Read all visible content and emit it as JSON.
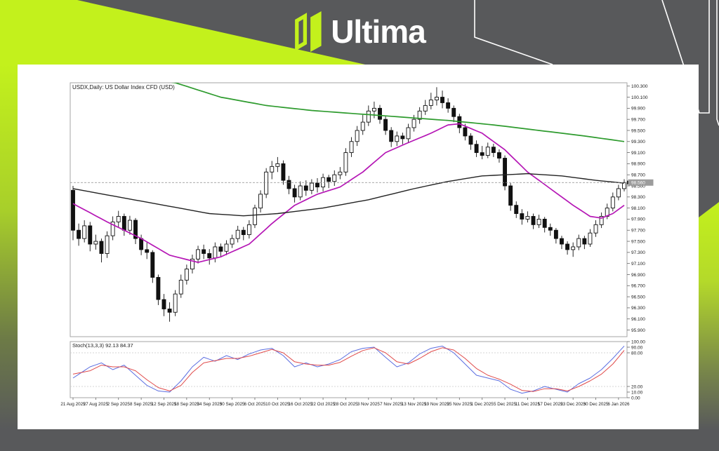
{
  "branding": {
    "logo_text": "Ultima",
    "accent_color": "#c3f11c",
    "background_color": "#58595b"
  },
  "chart_data": {
    "type": "candlestick",
    "title": "USDX,Daily: US Dollar Index CFD (USD)",
    "price_ylim": [
      95.78,
      100.36
    ],
    "price_axis_labels": [
      "100.300",
      "100.100",
      "99.900",
      "99.700",
      "99.500",
      "99.300",
      "99.100",
      "98.900",
      "98.700",
      "98.500",
      "98.300",
      "98.100",
      "97.900",
      "97.700",
      "97.500",
      "97.300",
      "97.100",
      "96.900",
      "96.700",
      "96.500",
      "96.300",
      "96.100",
      "95.900"
    ],
    "current_price": 98.56,
    "current_price_label": "98.560",
    "x_tick_labels": [
      "21 Aug 2025",
      "27 Aug 2025",
      "2 Sep 2025",
      "8 Sep 2025",
      "12 Sep 2025",
      "18 Sep 2025",
      "24 Sep 2025",
      "30 Sep 2025",
      "6 Oct 2025",
      "10 Oct 2025",
      "16 Oct 2025",
      "22 Oct 2025",
      "28 Oct 2025",
      "3 Nov 2025",
      "7 Nov 2025",
      "13 Nov 2025",
      "19 Nov 2025",
      "25 Nov 2025",
      "1 Dec 2025",
      "5 Dec 2025",
      "11 Dec 2025",
      "17 Dec 2025",
      "23 Dec 2025",
      "30 Dec 2025",
      "6 Jan 2026"
    ],
    "x_label_every": 4,
    "candles": [
      [
        98.42,
        98.5,
        97.52,
        97.7
      ],
      [
        97.7,
        97.82,
        97.42,
        97.55
      ],
      [
        97.55,
        97.88,
        97.48,
        97.78
      ],
      [
        97.78,
        97.85,
        97.32,
        97.45
      ],
      [
        97.45,
        97.62,
        97.35,
        97.5
      ],
      [
        97.5,
        97.55,
        97.12,
        97.28
      ],
      [
        97.28,
        97.68,
        97.2,
        97.6
      ],
      [
        97.6,
        97.95,
        97.52,
        97.85
      ],
      [
        97.85,
        98.05,
        97.75,
        97.95
      ],
      [
        97.95,
        98.0,
        97.6,
        97.7
      ],
      [
        97.7,
        97.96,
        97.62,
        97.88
      ],
      [
        97.88,
        97.92,
        97.45,
        97.55
      ],
      [
        97.55,
        97.62,
        97.25,
        97.35
      ],
      [
        97.35,
        97.48,
        97.18,
        97.3
      ],
      [
        97.3,
        97.34,
        96.75,
        96.85
      ],
      [
        96.85,
        96.9,
        96.35,
        96.45
      ],
      [
        96.45,
        96.55,
        96.15,
        96.28
      ],
      [
        96.28,
        96.4,
        96.05,
        96.22
      ],
      [
        96.22,
        96.62,
        96.15,
        96.55
      ],
      [
        96.55,
        96.9,
        96.48,
        96.8
      ],
      [
        96.8,
        97.08,
        96.72,
        97.0
      ],
      [
        97.0,
        97.26,
        96.92,
        97.18
      ],
      [
        97.18,
        97.42,
        97.1,
        97.35
      ],
      [
        97.35,
        97.44,
        97.18,
        97.28
      ],
      [
        97.28,
        97.36,
        97.08,
        97.2
      ],
      [
        97.2,
        97.48,
        97.12,
        97.4
      ],
      [
        97.4,
        97.46,
        97.22,
        97.32
      ],
      [
        97.32,
        97.52,
        97.25,
        97.45
      ],
      [
        97.45,
        97.62,
        97.38,
        97.55
      ],
      [
        97.55,
        97.78,
        97.48,
        97.7
      ],
      [
        97.7,
        97.76,
        97.52,
        97.62
      ],
      [
        97.62,
        97.88,
        97.55,
        97.8
      ],
      [
        97.8,
        98.16,
        97.74,
        98.1
      ],
      [
        98.1,
        98.42,
        98.02,
        98.35
      ],
      [
        98.35,
        98.82,
        98.28,
        98.75
      ],
      [
        98.75,
        98.95,
        98.62,
        98.85
      ],
      [
        98.85,
        99.02,
        98.75,
        98.9
      ],
      [
        98.9,
        98.96,
        98.52,
        98.6
      ],
      [
        98.6,
        98.68,
        98.35,
        98.45
      ],
      [
        98.45,
        98.52,
        98.2,
        98.3
      ],
      [
        98.3,
        98.58,
        98.24,
        98.5
      ],
      [
        98.5,
        98.6,
        98.32,
        98.42
      ],
      [
        98.42,
        98.62,
        98.35,
        98.55
      ],
      [
        98.55,
        98.64,
        98.38,
        98.48
      ],
      [
        98.48,
        98.72,
        98.4,
        98.65
      ],
      [
        98.65,
        98.7,
        98.46,
        98.58
      ],
      [
        98.58,
        98.78,
        98.5,
        98.7
      ],
      [
        98.7,
        98.84,
        98.62,
        98.75
      ],
      [
        98.75,
        99.18,
        98.68,
        99.1
      ],
      [
        99.1,
        99.38,
        99.02,
        99.3
      ],
      [
        99.3,
        99.58,
        99.22,
        99.5
      ],
      [
        99.5,
        99.78,
        99.42,
        99.65
      ],
      [
        99.65,
        99.95,
        99.58,
        99.85
      ],
      [
        99.85,
        100.02,
        99.72,
        99.9
      ],
      [
        99.9,
        99.96,
        99.62,
        99.7
      ],
      [
        99.7,
        99.76,
        99.42,
        99.5
      ],
      [
        99.5,
        99.56,
        99.2,
        99.3
      ],
      [
        99.3,
        99.48,
        99.22,
        99.4
      ],
      [
        99.4,
        99.46,
        99.25,
        99.35
      ],
      [
        99.35,
        99.62,
        99.28,
        99.55
      ],
      [
        99.55,
        99.78,
        99.48,
        99.7
      ],
      [
        99.7,
        99.92,
        99.62,
        99.85
      ],
      [
        99.85,
        100.05,
        99.78,
        99.95
      ],
      [
        99.95,
        100.18,
        99.88,
        100.05
      ],
      [
        100.05,
        100.28,
        99.95,
        100.1
      ],
      [
        100.1,
        100.22,
        99.9,
        100.0
      ],
      [
        100.0,
        100.08,
        99.82,
        99.9
      ],
      [
        99.9,
        99.95,
        99.65,
        99.75
      ],
      [
        99.75,
        99.8,
        99.45,
        99.55
      ],
      [
        99.55,
        99.62,
        99.32,
        99.4
      ],
      [
        99.4,
        99.45,
        99.15,
        99.25
      ],
      [
        99.25,
        99.32,
        99.02,
        99.1
      ],
      [
        99.1,
        99.22,
        98.98,
        99.05
      ],
      [
        99.05,
        99.28,
        99.0,
        99.2
      ],
      [
        99.2,
        99.26,
        99.02,
        99.1
      ],
      [
        99.1,
        99.16,
        98.92,
        99.0
      ],
      [
        99.0,
        99.05,
        98.42,
        98.5
      ],
      [
        98.5,
        98.55,
        98.05,
        98.15
      ],
      [
        98.15,
        98.22,
        97.92,
        98.0
      ],
      [
        98.0,
        98.08,
        97.8,
        97.9
      ],
      [
        97.9,
        98.04,
        97.84,
        97.95
      ],
      [
        97.95,
        98.0,
        97.72,
        97.8
      ],
      [
        97.8,
        97.98,
        97.74,
        97.9
      ],
      [
        97.9,
        97.94,
        97.66,
        97.75
      ],
      [
        97.75,
        97.82,
        97.6,
        97.7
      ],
      [
        97.7,
        97.74,
        97.46,
        97.55
      ],
      [
        97.55,
        97.6,
        97.36,
        97.45
      ],
      [
        97.45,
        97.5,
        97.26,
        97.35
      ],
      [
        97.35,
        97.48,
        97.22,
        97.4
      ],
      [
        97.4,
        97.62,
        97.34,
        97.55
      ],
      [
        97.55,
        97.6,
        97.36,
        97.45
      ],
      [
        97.45,
        97.72,
        97.4,
        97.65
      ],
      [
        97.65,
        97.88,
        97.58,
        97.8
      ],
      [
        97.8,
        98.02,
        97.74,
        97.95
      ],
      [
        97.95,
        98.18,
        97.9,
        98.1
      ],
      [
        98.1,
        98.38,
        98.04,
        98.3
      ],
      [
        98.3,
        98.52,
        98.24,
        98.45
      ],
      [
        98.45,
        98.62,
        98.4,
        98.56
      ]
    ],
    "overlays": [
      {
        "name": "ma-long-green",
        "color": "#2e9b2e",
        "width": 1.7,
        "anchors": [
          [
            0,
            100.62
          ],
          [
            18,
            100.36
          ],
          [
            26,
            100.1
          ],
          [
            34,
            99.95
          ],
          [
            42,
            99.86
          ],
          [
            50,
            99.8
          ],
          [
            58,
            99.74
          ],
          [
            66,
            99.68
          ],
          [
            74,
            99.6
          ],
          [
            82,
            99.5
          ],
          [
            90,
            99.4
          ],
          [
            97,
            99.3
          ]
        ]
      },
      {
        "name": "ma-medium-magenta",
        "color": "#b516b5",
        "width": 1.7,
        "anchors": [
          [
            0,
            98.18
          ],
          [
            6,
            97.85
          ],
          [
            12,
            97.55
          ],
          [
            17,
            97.25
          ],
          [
            22,
            97.12
          ],
          [
            26,
            97.22
          ],
          [
            31,
            97.45
          ],
          [
            35,
            97.82
          ],
          [
            39,
            98.15
          ],
          [
            43,
            98.35
          ],
          [
            47,
            98.48
          ],
          [
            51,
            98.75
          ],
          [
            55,
            99.1
          ],
          [
            59,
            99.28
          ],
          [
            63,
            99.45
          ],
          [
            66,
            99.6
          ],
          [
            68,
            99.62
          ],
          [
            72,
            99.45
          ],
          [
            76,
            99.15
          ],
          [
            80,
            98.75
          ],
          [
            84,
            98.45
          ],
          [
            88,
            98.15
          ],
          [
            91,
            97.95
          ],
          [
            93,
            97.92
          ],
          [
            95,
            98.0
          ],
          [
            97,
            98.15
          ]
        ]
      },
      {
        "name": "ma-slow-black",
        "color": "#222222",
        "width": 1.4,
        "anchors": [
          [
            0,
            98.45
          ],
          [
            8,
            98.3
          ],
          [
            16,
            98.15
          ],
          [
            24,
            98.0
          ],
          [
            30,
            97.96
          ],
          [
            36,
            98.0
          ],
          [
            44,
            98.1
          ],
          [
            52,
            98.25
          ],
          [
            60,
            98.45
          ],
          [
            66,
            98.58
          ],
          [
            72,
            98.68
          ],
          [
            80,
            98.72
          ],
          [
            86,
            98.68
          ],
          [
            92,
            98.6
          ],
          [
            97,
            98.55
          ]
        ]
      }
    ],
    "stochastic": {
      "label": "Stoch(13,3,3) 92.13 84.37",
      "ylim": [
        0,
        100
      ],
      "levels": [
        80,
        20
      ],
      "axis_ticks": [
        [
          "100.00",
          100
        ],
        [
          "90.00",
          90
        ],
        [
          "80.00",
          80
        ],
        [
          "20.00",
          20
        ],
        [
          "10.00",
          10
        ],
        [
          "0.00",
          0
        ]
      ],
      "lines": [
        {
          "name": "stoch-main-blue",
          "color": "#5b6ee1",
          "width": 1,
          "anchors": [
            [
              0,
              35
            ],
            [
              3,
              55
            ],
            [
              5,
              62
            ],
            [
              7,
              50
            ],
            [
              9,
              58
            ],
            [
              11,
              40
            ],
            [
              13,
              22
            ],
            [
              15,
              12
            ],
            [
              17,
              10
            ],
            [
              19,
              30
            ],
            [
              21,
              55
            ],
            [
              23,
              72
            ],
            [
              25,
              65
            ],
            [
              27,
              75
            ],
            [
              29,
              68
            ],
            [
              31,
              78
            ],
            [
              33,
              85
            ],
            [
              35,
              88
            ],
            [
              37,
              75
            ],
            [
              39,
              55
            ],
            [
              41,
              62
            ],
            [
              43,
              55
            ],
            [
              45,
              60
            ],
            [
              47,
              68
            ],
            [
              49,
              82
            ],
            [
              51,
              88
            ],
            [
              53,
              90
            ],
            [
              55,
              72
            ],
            [
              57,
              55
            ],
            [
              59,
              62
            ],
            [
              61,
              78
            ],
            [
              63,
              88
            ],
            [
              65,
              92
            ],
            [
              67,
              80
            ],
            [
              69,
              60
            ],
            [
              71,
              40
            ],
            [
              73,
              35
            ],
            [
              75,
              30
            ],
            [
              77,
              15
            ],
            [
              79,
              8
            ],
            [
              81,
              12
            ],
            [
              83,
              20
            ],
            [
              85,
              15
            ],
            [
              87,
              10
            ],
            [
              89,
              25
            ],
            [
              91,
              35
            ],
            [
              93,
              50
            ],
            [
              95,
              70
            ],
            [
              97,
              92.13
            ]
          ]
        },
        {
          "name": "stoch-signal-red",
          "color": "#e04b4b",
          "width": 1,
          "anchors": [
            [
              0,
              42
            ],
            [
              3,
              48
            ],
            [
              5,
              58
            ],
            [
              7,
              55
            ],
            [
              9,
              55
            ],
            [
              11,
              48
            ],
            [
              13,
              32
            ],
            [
              15,
              18
            ],
            [
              17,
              12
            ],
            [
              19,
              22
            ],
            [
              21,
              45
            ],
            [
              23,
              62
            ],
            [
              25,
              66
            ],
            [
              27,
              70
            ],
            [
              29,
              70
            ],
            [
              31,
              74
            ],
            [
              33,
              80
            ],
            [
              35,
              86
            ],
            [
              37,
              80
            ],
            [
              39,
              64
            ],
            [
              41,
              60
            ],
            [
              43,
              58
            ],
            [
              45,
              58
            ],
            [
              47,
              63
            ],
            [
              49,
              74
            ],
            [
              51,
              84
            ],
            [
              53,
              89
            ],
            [
              55,
              80
            ],
            [
              57,
              64
            ],
            [
              59,
              60
            ],
            [
              61,
              70
            ],
            [
              63,
              82
            ],
            [
              65,
              89
            ],
            [
              67,
              85
            ],
            [
              69,
              70
            ],
            [
              71,
              52
            ],
            [
              73,
              40
            ],
            [
              75,
              33
            ],
            [
              77,
              24
            ],
            [
              79,
              13
            ],
            [
              81,
              11
            ],
            [
              83,
              16
            ],
            [
              85,
              16
            ],
            [
              87,
              12
            ],
            [
              89,
              20
            ],
            [
              91,
              30
            ],
            [
              93,
              42
            ],
            [
              95,
              60
            ],
            [
              97,
              84.37
            ]
          ]
        }
      ]
    }
  }
}
